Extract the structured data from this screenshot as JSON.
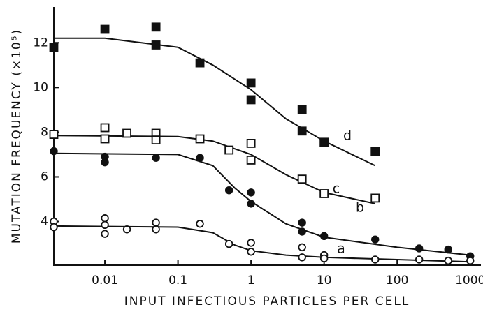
{
  "chart_data": {
    "type": "scatter",
    "xlabel": "INPUT INFECTIOUS PARTICLES PER CELL",
    "ylabel": "MUTATION FREQUENCY (×10⁵)",
    "xscale": "log",
    "xlim": [
      0.002,
      1400
    ],
    "ylim": [
      2.05,
      13.6
    ],
    "xticks": [
      0.01,
      0.1,
      1,
      10,
      100,
      1000
    ],
    "yticks": [
      4,
      6,
      8,
      10,
      12
    ],
    "color": "#111111",
    "series": [
      {
        "name": "d",
        "marker": "filled-square",
        "x": [
          0.002,
          0.01,
          0.05,
          0.05,
          0.2,
          1,
          1,
          5,
          5,
          10,
          50
        ],
        "values": [
          11.8,
          12.6,
          12.7,
          11.9,
          11.1,
          10.2,
          9.45,
          9.0,
          8.05,
          7.55,
          7.15
        ],
        "curve_x": [
          0.002,
          0.01,
          0.1,
          0.3,
          1,
          3,
          10,
          50
        ],
        "curve_y": [
          12.2,
          12.2,
          11.8,
          11.0,
          9.9,
          8.6,
          7.6,
          6.5
        ]
      },
      {
        "name": "c",
        "marker": "open-square",
        "x": [
          0.002,
          0.01,
          0.01,
          0.02,
          0.05,
          0.05,
          0.2,
          0.5,
          1,
          1,
          5,
          10,
          50
        ],
        "values": [
          7.9,
          8.2,
          7.7,
          7.95,
          7.95,
          7.65,
          7.7,
          7.2,
          7.5,
          6.75,
          5.9,
          5.25,
          5.05
        ],
        "curve_x": [
          0.002,
          0.1,
          0.3,
          1,
          3,
          10,
          50
        ],
        "curve_y": [
          7.85,
          7.8,
          7.6,
          7.0,
          6.1,
          5.3,
          4.8
        ]
      },
      {
        "name": "b",
        "marker": "filled-circle",
        "x": [
          0.002,
          0.01,
          0.01,
          0.05,
          0.2,
          0.5,
          1,
          1,
          5,
          5,
          10,
          50,
          200,
          500,
          1000
        ],
        "values": [
          7.15,
          6.9,
          6.65,
          6.85,
          6.85,
          5.4,
          5.3,
          4.8,
          3.95,
          3.55,
          3.35,
          3.2,
          2.8,
          2.75,
          2.45
        ],
        "curve_x": [
          0.002,
          0.1,
          0.3,
          0.6,
          1,
          3,
          10,
          100,
          1000
        ],
        "curve_y": [
          7.05,
          7.0,
          6.5,
          5.5,
          4.9,
          3.9,
          3.3,
          2.85,
          2.5
        ]
      },
      {
        "name": "a",
        "marker": "open-circle",
        "x": [
          0.002,
          0.002,
          0.01,
          0.01,
          0.01,
          0.02,
          0.05,
          0.05,
          0.2,
          0.5,
          1,
          1,
          5,
          5,
          10,
          10,
          50,
          200,
          500,
          1000
        ],
        "values": [
          4.0,
          3.75,
          4.15,
          3.85,
          3.45,
          3.65,
          3.95,
          3.65,
          3.9,
          3.0,
          3.05,
          2.65,
          2.85,
          2.4,
          2.5,
          2.35,
          2.3,
          2.3,
          2.25,
          2.25
        ],
        "curve_x": [
          0.002,
          0.1,
          0.3,
          0.6,
          1,
          3,
          10,
          100,
          1000
        ],
        "curve_y": [
          3.8,
          3.75,
          3.5,
          2.95,
          2.7,
          2.5,
          2.4,
          2.3,
          2.2
        ]
      }
    ]
  }
}
